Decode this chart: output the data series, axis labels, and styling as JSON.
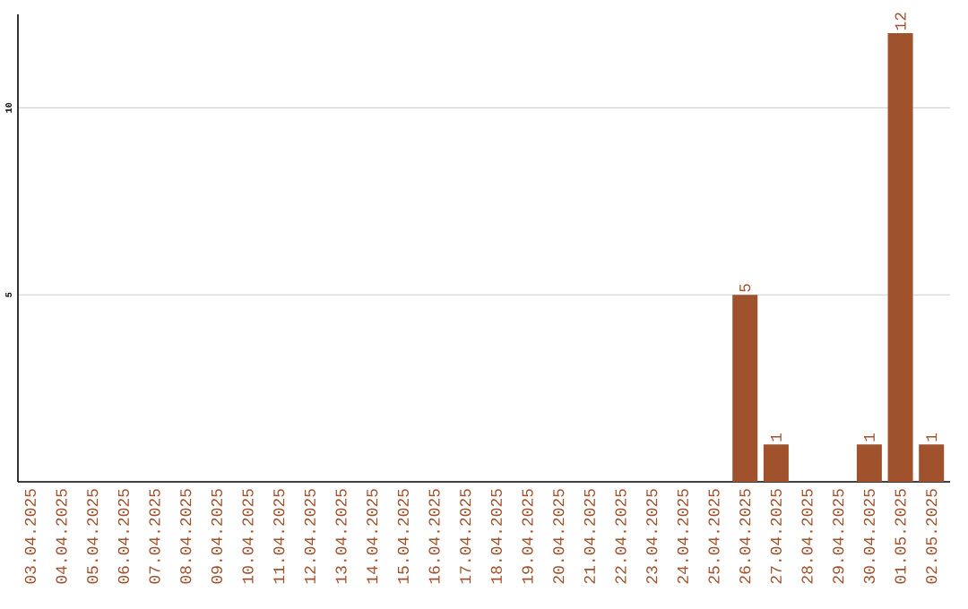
{
  "chart_data": {
    "type": "bar",
    "categories": [
      "03.04.2025",
      "04.04.2025",
      "05.04.2025",
      "06.04.2025",
      "07.04.2025",
      "08.04.2025",
      "09.04.2025",
      "10.04.2025",
      "11.04.2025",
      "12.04.2025",
      "13.04.2025",
      "14.04.2025",
      "15.04.2025",
      "16.04.2025",
      "17.04.2025",
      "18.04.2025",
      "19.04.2025",
      "20.04.2025",
      "21.04.2025",
      "22.04.2025",
      "23.04.2025",
      "24.04.2025",
      "25.04.2025",
      "26.04.2025",
      "27.04.2025",
      "28.04.2025",
      "29.04.2025",
      "30.04.2025",
      "01.05.2025",
      "02.05.2025"
    ],
    "values": [
      0,
      0,
      0,
      0,
      0,
      0,
      0,
      0,
      0,
      0,
      0,
      0,
      0,
      0,
      0,
      0,
      0,
      0,
      0,
      0,
      0,
      0,
      0,
      5,
      1,
      0,
      0,
      1,
      12,
      1
    ],
    "value_labels": [
      null,
      null,
      null,
      null,
      null,
      null,
      null,
      null,
      null,
      null,
      null,
      null,
      null,
      null,
      null,
      null,
      null,
      null,
      null,
      null,
      null,
      null,
      null,
      "5",
      "1",
      null,
      null,
      "1",
      "12",
      "1"
    ],
    "color": "#a0522d",
    "ylim": [
      0,
      12.5
    ],
    "yticks": [
      5,
      10
    ],
    "grid": "y"
  }
}
